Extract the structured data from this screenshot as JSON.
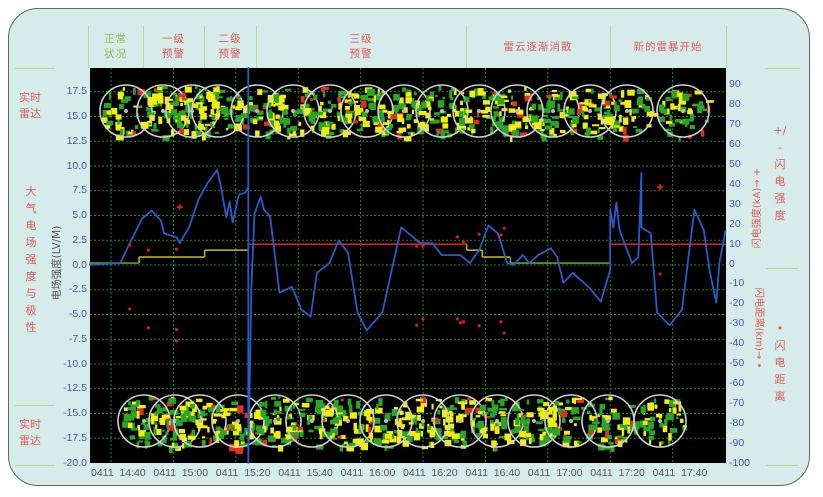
{
  "header": {
    "stages": [
      {
        "label": "正常\n状况",
        "color": "#8fbf4f"
      },
      {
        "label": "一级\n预警",
        "color": "#e05a5a"
      },
      {
        "label": "二级\n预警",
        "color": "#e05a5a"
      },
      {
        "label": "三级\n预警",
        "color": "#e05a5a"
      },
      {
        "label": "雷云逐渐消散",
        "color": "#e05a5a"
      },
      {
        "label": "新的雷暴开始",
        "color": "#e05a5a"
      }
    ]
  },
  "left_labels": {
    "radar_top": "实时\n雷达",
    "field": "大气电场强度与极性",
    "radar_bottom": "实时\n雷达"
  },
  "right_labels": {
    "intensity": "+/-闪电强度",
    "distance": "•闪电距离"
  },
  "chart_data": {
    "type": "line",
    "ylabel_left": "电场强度(LV/M)",
    "ylabel_right_top": "闪电强度(kA)→ +",
    "ylabel_right_bottom": "闪电距离(km)→ •",
    "ylim_left": [
      -20,
      20
    ],
    "yticks_left": [
      "17.5",
      "15.0",
      "12.5",
      "10.0",
      "7.5",
      "5.0",
      "2.5",
      "0.0",
      "-2.5",
      "-5.0",
      "-7.5",
      "-10.0",
      "-12.5",
      "-15.0",
      "-17.5",
      "-20.0"
    ],
    "ylim_right": [
      -100,
      90
    ],
    "yticks_right": [
      "90",
      "80",
      "70",
      "60",
      "50",
      "40",
      "30",
      "20",
      "10",
      "0",
      "-10",
      "-20",
      "-30",
      "-40",
      "-50",
      "-60",
      "-70",
      "-80",
      "-90",
      "-100"
    ],
    "xlim": [
      "14:33",
      "17:57"
    ],
    "xticks": [
      "0411  14:40",
      "0411  15:00",
      "0411  15:20",
      "0411  15:40",
      "0411  16:00",
      "0411  16:20",
      "0411  16:40",
      "0411  17:00",
      "0411  17:20",
      "0411  17:40"
    ],
    "grid": true,
    "colors": {
      "background": "#000000",
      "grid": "#1f8a2a",
      "field": "#2a5cc8",
      "level0": "#6a9a2a",
      "level1": "#b8b020",
      "level3": "#e01818",
      "lightning": "#e01818"
    },
    "field_series": [
      [
        "14:33",
        0
      ],
      [
        "14:43",
        0.2
      ],
      [
        "14:46",
        2.2
      ],
      [
        "14:50",
        4.7
      ],
      [
        "14:53",
        5.5
      ],
      [
        "14:56",
        4.5
      ],
      [
        "14:57",
        3.2
      ],
      [
        "15:01",
        2.8
      ],
      [
        "15:02",
        2.2
      ],
      [
        "15:05",
        3.8
      ],
      [
        "15:08",
        6.6
      ],
      [
        "15:11",
        8.3
      ],
      [
        "15:14",
        9.6
      ],
      [
        "15:15",
        8.3
      ],
      [
        "15:17",
        4.8
      ],
      [
        "15:18",
        6.4
      ],
      [
        "15:19",
        4.3
      ],
      [
        "15:21",
        7.1
      ],
      [
        "15:23",
        7.3
      ],
      [
        "15:24",
        7.9
      ],
      [
        "15:24",
        20
      ],
      [
        "15:24",
        -20
      ],
      [
        "15:25",
        -2.2
      ],
      [
        "15:26",
        5.2
      ],
      [
        "15:28",
        6.9
      ],
      [
        "15:29",
        5.6
      ],
      [
        "15:31",
        4.9
      ],
      [
        "15:34",
        -2.8
      ],
      [
        "15:38",
        -2.2
      ],
      [
        "15:41",
        -4.5
      ],
      [
        "15:44",
        -5.2
      ],
      [
        "15:46",
        -0.8
      ],
      [
        "15:50",
        0.2
      ],
      [
        "15:53",
        2.5
      ],
      [
        "15:56",
        1.2
      ],
      [
        "15:59",
        -4.8
      ],
      [
        "16:02",
        -6.6
      ],
      [
        "16:07",
        -4.8
      ],
      [
        "16:10",
        -0.5
      ],
      [
        "16:13",
        3.8
      ],
      [
        "16:17",
        2.8
      ],
      [
        "16:19",
        2.2
      ],
      [
        "16:23",
        2.2
      ],
      [
        "16:26",
        1.0
      ],
      [
        "16:32",
        1.0
      ],
      [
        "16:35",
        0.2
      ],
      [
        "16:38",
        1.5
      ],
      [
        "16:41",
        4.0
      ],
      [
        "16:44",
        3.2
      ],
      [
        "16:47",
        0.2
      ],
      [
        "16:49",
        0.0
      ],
      [
        "16:52",
        1.0
      ],
      [
        "16:54",
        0.2
      ],
      [
        "16:57",
        1.0
      ],
      [
        "17:01",
        1.7
      ],
      [
        "17:03",
        0.8
      ],
      [
        "17:05",
        -1.8
      ],
      [
        "17:08",
        -0.8
      ],
      [
        "17:13",
        -2.2
      ],
      [
        "17:17",
        -3.7
      ],
      [
        "17:20",
        -0.5
      ],
      [
        "17:20",
        5.6
      ],
      [
        "17:21",
        3.8
      ],
      [
        "17:22",
        6.3
      ],
      [
        "17:23",
        3.5
      ],
      [
        "17:27",
        0.2
      ],
      [
        "17:29",
        0.8
      ],
      [
        "17:30",
        9.3
      ],
      [
        "17:30",
        3.8
      ],
      [
        "17:33",
        3.2
      ],
      [
        "17:35",
        -4.8
      ],
      [
        "17:39",
        -6.1
      ],
      [
        "17:43",
        -4.5
      ],
      [
        "17:47",
        5.6
      ],
      [
        "17:50",
        3.5
      ],
      [
        "17:52",
        -0.8
      ],
      [
        "17:54",
        -3.8
      ],
      [
        "17:55",
        0.2
      ],
      [
        "17:57",
        3.5
      ]
    ],
    "warning_steps": [
      {
        "from": "14:33",
        "to": "14:49",
        "value": 0.2,
        "color": "#6a9a2a"
      },
      {
        "from": "14:49",
        "to": "15:10",
        "value": 0.8,
        "color": "#b8b020"
      },
      {
        "from": "15:10",
        "to": "15:24",
        "value": 1.5,
        "color": "#b8b020"
      },
      {
        "from": "15:24",
        "to": "16:34",
        "value": 2.1,
        "color": "#e01818"
      },
      {
        "from": "16:34",
        "to": "16:39",
        "value": 1.5,
        "color": "#b8b020"
      },
      {
        "from": "16:39",
        "to": "16:48",
        "value": 0.8,
        "color": "#b8b020"
      },
      {
        "from": "16:48",
        "to": "17:20",
        "value": 0.2,
        "color": "#6a9a2a"
      },
      {
        "from": "17:20",
        "to": "17:57",
        "value": 2.1,
        "color": "#e01818"
      }
    ],
    "lightning_points": [
      [
        "14:46",
        9.5,
        "dot"
      ],
      [
        "14:52",
        7,
        "dot"
      ],
      [
        "15:01",
        7.5,
        "dot"
      ],
      [
        "15:02",
        28.6,
        "cross"
      ],
      [
        "14:46",
        -22.6,
        "dot"
      ],
      [
        "14:52",
        -32,
        "dot"
      ],
      [
        "15:01",
        -33,
        "dot"
      ],
      [
        "15:01",
        -38.7,
        "dot"
      ],
      [
        "16:18",
        9,
        "dot"
      ],
      [
        "16:20",
        9,
        "dot"
      ],
      [
        "16:31",
        13.6,
        "dot"
      ],
      [
        "16:33",
        11,
        "dot"
      ],
      [
        "16:38",
        15,
        "dot"
      ],
      [
        "16:45",
        14.6,
        "dot"
      ],
      [
        "16:46",
        18,
        "dot"
      ],
      [
        "17:36",
        38.7,
        "cross"
      ],
      [
        "17:36",
        -5,
        "dot"
      ],
      [
        "16:20",
        -27.6,
        "dot"
      ],
      [
        "16:18",
        -30.7,
        "dot"
      ],
      [
        "16:31",
        -27.6,
        "dot"
      ],
      [
        "16:32",
        -29.6,
        "dot"
      ],
      [
        "16:33",
        -29,
        "dot"
      ],
      [
        "16:38",
        -31,
        "dot"
      ],
      [
        "16:45",
        -29,
        "dot"
      ],
      [
        "16:46",
        -34.7,
        "dot"
      ]
    ]
  }
}
